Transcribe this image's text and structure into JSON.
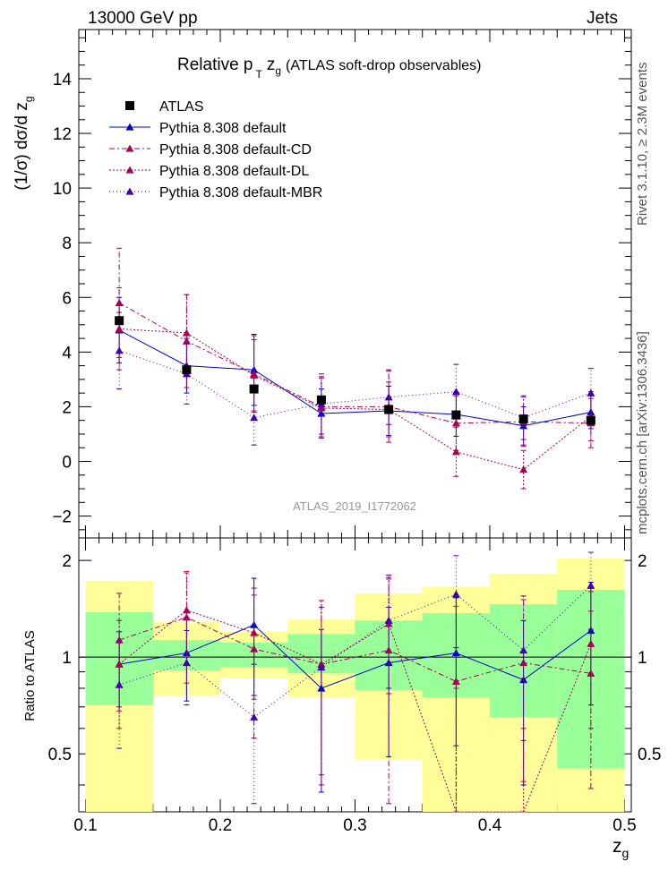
{
  "header": {
    "left": "13000 GeV pp",
    "right": "Jets"
  },
  "side_labels": {
    "rivet": "Rivet 3.1.10, ≥ 2.3M events",
    "mcplots": "mcplots.cern.ch [arXiv:1306.3436]"
  },
  "chart_data": {
    "type": "line",
    "title_main": "Relative p",
    "title_sub": "T",
    "title_zg": "z",
    "title_zg_sub": "g",
    "title_rest": "(ATLAS soft-drop observables)",
    "watermark": "ATLAS_2019_I1772062",
    "xlabel": "z",
    "xlabel_sub": "g",
    "ylabel": "(1/σ) dσ/d z",
    "ylabel_sub": "g",
    "ratio_ylabel": "Ratio to ATLAS",
    "xlim": [
      0.095,
      0.505
    ],
    "ylim": [
      -2.8,
      15.8
    ],
    "ratio_ylim": [
      0.33,
      2.35
    ],
    "x_ticks": [
      "0.1",
      "0.2",
      "0.3",
      "0.4",
      "0.5"
    ],
    "y_ticks": [
      "−2",
      "0",
      "2",
      "4",
      "6",
      "8",
      "10",
      "12",
      "14"
    ],
    "ratio_ticks": [
      "0.5",
      "1",
      "2"
    ],
    "bin_edges": [
      0.1,
      0.15,
      0.2,
      0.25,
      0.3,
      0.35,
      0.4,
      0.45,
      0.5
    ],
    "x": [
      0.125,
      0.175,
      0.225,
      0.275,
      0.325,
      0.375,
      0.425,
      0.475
    ],
    "data": {
      "name": "ATLAS",
      "color": "#000000",
      "values": [
        5.15,
        3.35,
        2.65,
        2.25,
        1.9,
        1.7,
        1.55,
        1.5
      ],
      "band_green": [
        [
          0.71,
          1.38
        ],
        [
          0.91,
          1.13
        ],
        [
          0.93,
          1.11
        ],
        [
          0.89,
          1.18
        ],
        [
          0.79,
          1.3
        ],
        [
          0.75,
          1.37
        ],
        [
          0.65,
          1.46
        ],
        [
          0.45,
          1.62
        ]
      ],
      "band_yellow": [
        [
          0.33,
          1.73
        ],
        [
          0.76,
          1.29
        ],
        [
          0.86,
          1.2
        ],
        [
          0.75,
          1.31
        ],
        [
          0.48,
          1.58
        ],
        [
          0.33,
          1.66
        ],
        [
          0.33,
          1.82
        ],
        [
          0.33,
          2.03
        ]
      ]
    },
    "series": [
      {
        "name": "Pythia 8.308 default",
        "color": "#0000cc",
        "dash": "",
        "values": [
          4.8,
          3.5,
          3.35,
          1.75,
          1.85,
          1.72,
          1.3,
          1.8
        ],
        "err": [
          1.2,
          1.0,
          1.3,
          0.9,
          0.9,
          0.8,
          0.7,
          0.6
        ],
        "ratio": [
          0.95,
          1.03,
          1.26,
          0.8,
          0.96,
          1.03,
          0.85,
          1.21
        ],
        "ratio_err": [
          0.25,
          0.3,
          0.5,
          0.42,
          0.47,
          0.5,
          0.45,
          0.5
        ]
      },
      {
        "name": "Pythia 8.308 default-CD",
        "color": "#aa0055",
        "dash": "6,3,2,3",
        "values": [
          5.8,
          4.4,
          3.2,
          2.0,
          2.0,
          1.4,
          1.45,
          1.4
        ],
        "err": [
          2.0,
          1.7,
          1.4,
          1.1,
          1.3,
          1.0,
          0.9,
          0.9
        ],
        "ratio": [
          1.13,
          1.33,
          1.06,
          0.95,
          1.05,
          0.84,
          0.96,
          0.89
        ],
        "ratio_err": [
          0.45,
          0.5,
          0.5,
          0.55,
          0.7,
          0.6,
          0.55,
          0.5
        ]
      },
      {
        "name": "Pythia 8.308 default-DL",
        "color": "#aa0055",
        "dash": "2,2",
        "values": [
          4.85,
          4.7,
          3.15,
          1.95,
          1.9,
          0.35,
          -0.3,
          1.65
        ],
        "err": [
          1.5,
          1.4,
          1.3,
          1.1,
          1.0,
          0.9,
          0.7,
          0.9
        ],
        "ratio": [
          0.95,
          1.4,
          1.19,
          0.95,
          1.27,
          0.2,
          0.1,
          1.1
        ],
        "ratio_err": [
          0.35,
          0.45,
          0.45,
          0.55,
          0.5,
          0.6,
          0.5,
          0.5
        ]
      },
      {
        "name": "Pythia 8.308 default-MBR",
        "color": "#4400aa",
        "dash": "1,3",
        "values": [
          4.05,
          3.2,
          1.6,
          2.1,
          2.35,
          2.55,
          1.6,
          2.5
        ],
        "err": [
          1.4,
          1.1,
          1.0,
          1.1,
          1.0,
          1.0,
          0.8,
          0.9
        ],
        "ratio": [
          0.82,
          0.96,
          0.65,
          0.93,
          1.3,
          1.57,
          1.05,
          1.67
        ],
        "ratio_err": [
          0.3,
          0.25,
          0.3,
          0.5,
          0.5,
          0.5,
          0.5,
          0.45
        ]
      }
    ]
  }
}
